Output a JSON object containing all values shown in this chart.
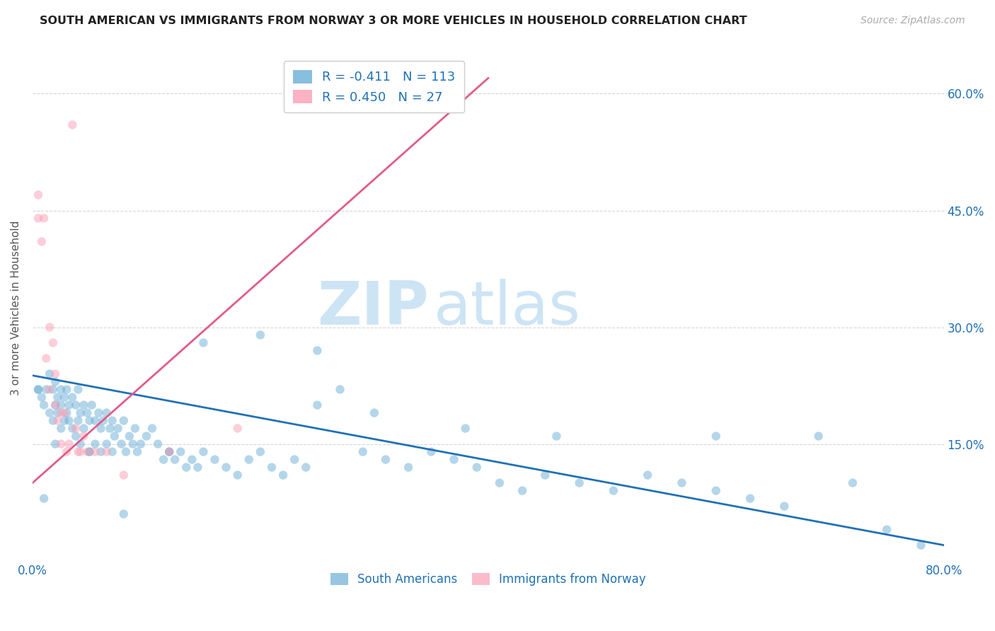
{
  "title": "SOUTH AMERICAN VS IMMIGRANTS FROM NORWAY 3 OR MORE VEHICLES IN HOUSEHOLD CORRELATION CHART",
  "source": "Source: ZipAtlas.com",
  "ylabel": "3 or more Vehicles in Household",
  "watermark_part1": "ZIP",
  "watermark_part2": "atlas",
  "xlim": [
    0.0,
    0.8
  ],
  "ylim": [
    0.0,
    0.65
  ],
  "x_ticks": [
    0.0,
    0.1,
    0.2,
    0.3,
    0.4,
    0.5,
    0.6,
    0.7,
    0.8
  ],
  "y_ticks": [
    0.0,
    0.15,
    0.3,
    0.45,
    0.6
  ],
  "right_y_tick_labels": [
    "",
    "15.0%",
    "30.0%",
    "45.0%",
    "60.0%"
  ],
  "blue_R": "-0.411",
  "blue_N": "113",
  "pink_R": "0.450",
  "pink_N": "27",
  "blue_color": "#6baed6",
  "pink_color": "#fa9fb5",
  "blue_line_color": "#2171b5",
  "pink_line_color": "#e05c8a",
  "legend_text_color": "#2171b5",
  "axis_color": "#2171b5",
  "title_color": "#222222",
  "source_color": "#aaaaaa",
  "watermark_color": "#cde4f5",
  "grid_color": "#cccccc",
  "background_color": "#ffffff",
  "blue_x": [
    0.005,
    0.008,
    0.01,
    0.012,
    0.015,
    0.015,
    0.018,
    0.018,
    0.02,
    0.02,
    0.022,
    0.022,
    0.025,
    0.025,
    0.025,
    0.028,
    0.028,
    0.03,
    0.03,
    0.032,
    0.032,
    0.035,
    0.035,
    0.038,
    0.038,
    0.04,
    0.04,
    0.042,
    0.042,
    0.045,
    0.045,
    0.048,
    0.05,
    0.05,
    0.052,
    0.055,
    0.055,
    0.058,
    0.06,
    0.06,
    0.062,
    0.065,
    0.065,
    0.068,
    0.07,
    0.07,
    0.072,
    0.075,
    0.078,
    0.08,
    0.082,
    0.085,
    0.088,
    0.09,
    0.092,
    0.095,
    0.1,
    0.105,
    0.11,
    0.115,
    0.12,
    0.125,
    0.13,
    0.135,
    0.14,
    0.145,
    0.15,
    0.16,
    0.17,
    0.18,
    0.19,
    0.2,
    0.21,
    0.22,
    0.23,
    0.24,
    0.25,
    0.27,
    0.29,
    0.31,
    0.33,
    0.35,
    0.37,
    0.39,
    0.41,
    0.43,
    0.45,
    0.48,
    0.51,
    0.54,
    0.57,
    0.6,
    0.63,
    0.66,
    0.69,
    0.72,
    0.75,
    0.78,
    0.005,
    0.01,
    0.02,
    0.05,
    0.08,
    0.12,
    0.15,
    0.2,
    0.25,
    0.3,
    0.38,
    0.46,
    0.6
  ],
  "blue_y": [
    0.22,
    0.21,
    0.2,
    0.22,
    0.24,
    0.19,
    0.22,
    0.18,
    0.23,
    0.2,
    0.21,
    0.19,
    0.22,
    0.17,
    0.2,
    0.21,
    0.18,
    0.22,
    0.19,
    0.2,
    0.18,
    0.21,
    0.17,
    0.2,
    0.16,
    0.22,
    0.18,
    0.19,
    0.15,
    0.2,
    0.17,
    0.19,
    0.18,
    0.14,
    0.2,
    0.18,
    0.15,
    0.19,
    0.17,
    0.14,
    0.18,
    0.19,
    0.15,
    0.17,
    0.18,
    0.14,
    0.16,
    0.17,
    0.15,
    0.18,
    0.14,
    0.16,
    0.15,
    0.17,
    0.14,
    0.15,
    0.16,
    0.17,
    0.15,
    0.13,
    0.14,
    0.13,
    0.14,
    0.12,
    0.13,
    0.12,
    0.14,
    0.13,
    0.12,
    0.11,
    0.13,
    0.14,
    0.12,
    0.11,
    0.13,
    0.12,
    0.27,
    0.22,
    0.14,
    0.13,
    0.12,
    0.14,
    0.13,
    0.12,
    0.1,
    0.09,
    0.11,
    0.1,
    0.09,
    0.11,
    0.1,
    0.09,
    0.08,
    0.07,
    0.16,
    0.1,
    0.04,
    0.02,
    0.22,
    0.08,
    0.15,
    0.14,
    0.06,
    0.14,
    0.28,
    0.29,
    0.2,
    0.19,
    0.17,
    0.16,
    0.16,
    0.04,
    0.03
  ],
  "pink_x": [
    0.005,
    0.005,
    0.008,
    0.01,
    0.012,
    0.015,
    0.015,
    0.018,
    0.02,
    0.02,
    0.022,
    0.025,
    0.025,
    0.028,
    0.03,
    0.032,
    0.035,
    0.038,
    0.04,
    0.042,
    0.045,
    0.048,
    0.055,
    0.065,
    0.08,
    0.12,
    0.18
  ],
  "pink_y": [
    0.47,
    0.44,
    0.41,
    0.44,
    0.26,
    0.3,
    0.22,
    0.28,
    0.24,
    0.2,
    0.18,
    0.19,
    0.15,
    0.19,
    0.14,
    0.15,
    0.56,
    0.17,
    0.14,
    0.14,
    0.16,
    0.14,
    0.14,
    0.14,
    0.11,
    0.14,
    0.17
  ],
  "blue_line_x": [
    0.0,
    0.8
  ],
  "blue_line_y": [
    0.238,
    0.02
  ],
  "pink_line_x": [
    0.0,
    0.4
  ],
  "pink_line_y": [
    0.1,
    0.62
  ],
  "marker_size": 80,
  "marker_alpha": 0.5,
  "line_width": 2.0
}
